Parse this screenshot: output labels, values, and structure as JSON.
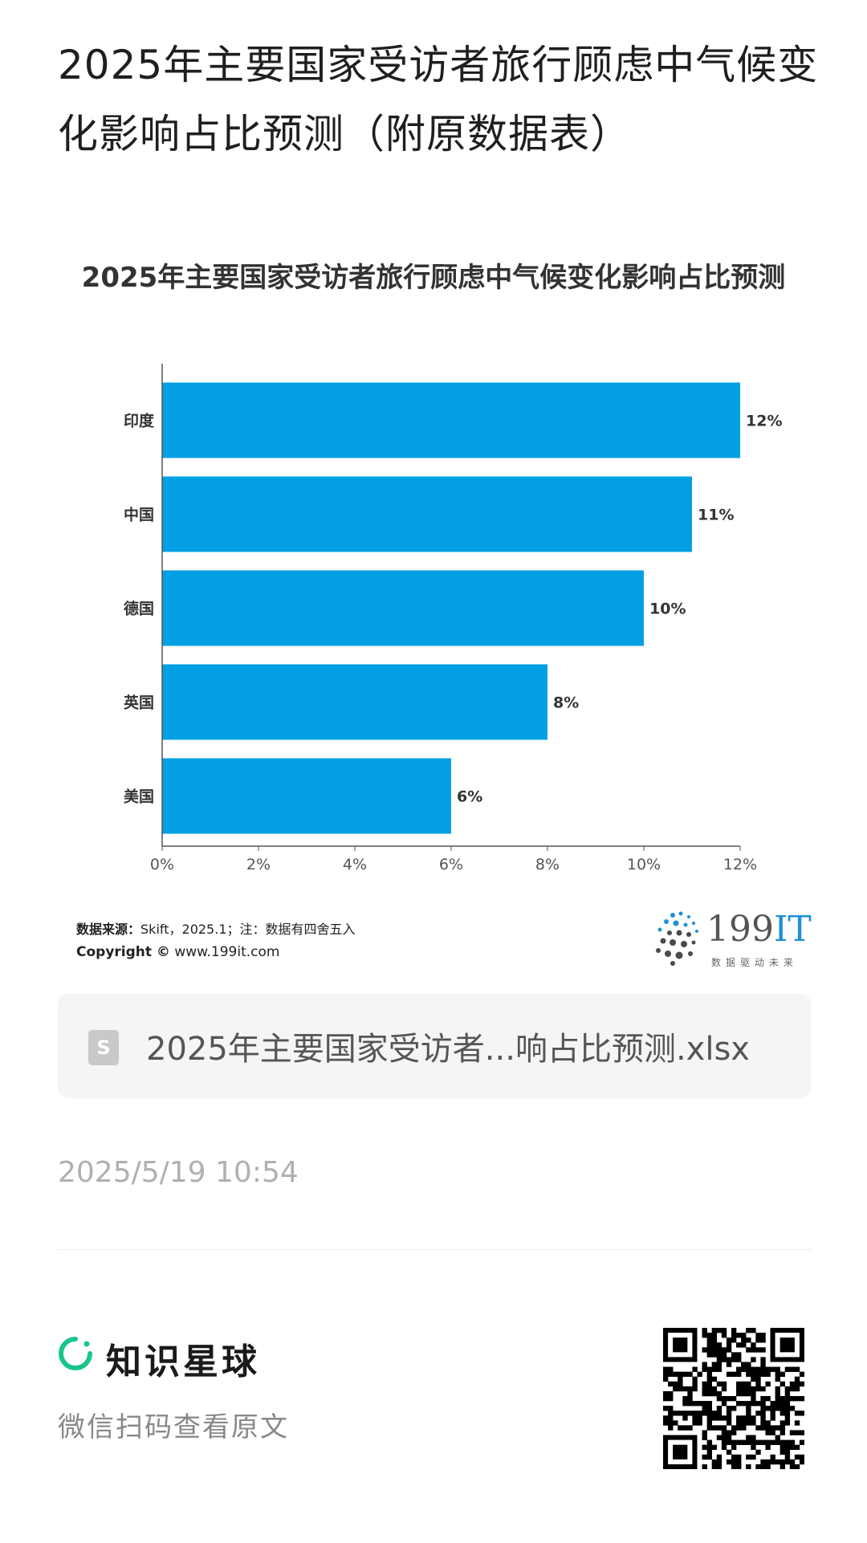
{
  "header": {
    "title": "2025年主要国家受访者旅行顾虑中气候变化影响占比预测（附原数据表）"
  },
  "chart_data": {
    "type": "bar",
    "orientation": "horizontal",
    "title": "2025年主要国家受访者旅行顾虑中气候变化影响占比预测",
    "categories": [
      "印度",
      "中国",
      "德国",
      "英国",
      "美国"
    ],
    "values": [
      12,
      11,
      10,
      8,
      6
    ],
    "value_labels": [
      "12%",
      "11%",
      "10%",
      "8%",
      "6%"
    ],
    "xlim": [
      0,
      12
    ],
    "xticks": [
      "0%",
      "2%",
      "4%",
      "6%",
      "8%",
      "10%",
      "12%"
    ],
    "xlabel": "",
    "ylabel": "",
    "grid": false,
    "bar_color": "#039fe5"
  },
  "footer": {
    "source_label": "数据来源：",
    "source_text": "Skift，2025.1；注：数据有四舍五入",
    "copyright_label": "Copyright ©",
    "copyright_text": "www.199it.com",
    "logo_main": "199",
    "logo_accent": "IT",
    "logo_slogan": "数据驱动未来"
  },
  "attachment": {
    "icon": "spreadsheet-file-icon",
    "icon_glyph": "S",
    "filename": "2025年主要国家受访者...响占比预测.xlsx"
  },
  "timestamp": "2025/5/19 10:54",
  "brand": {
    "name": "知识星球",
    "hint": "微信扫码查看原文",
    "color": "#18c48f"
  }
}
